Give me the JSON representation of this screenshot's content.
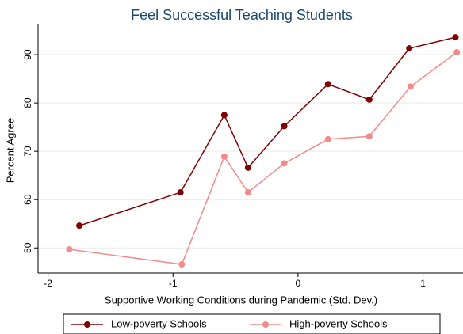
{
  "chart_data": {
    "type": "line",
    "title": "Feel Successful Teaching Students",
    "xlabel": "Supportive Working Conditions during Pandemic (Std. Dev.)",
    "ylabel": "Percent Agree",
    "xlim": [
      -2.08,
      1.32
    ],
    "xticks": [
      -2,
      -1,
      0,
      1
    ],
    "ylim": [
      44.8,
      96.4
    ],
    "yticks": [
      50,
      60,
      70,
      80,
      90
    ],
    "grid": true,
    "legend": "bottom",
    "series": [
      {
        "name": "Low-poverty Schools",
        "color": "#800000",
        "x": [
          -1.75,
          -0.94,
          -0.59,
          -0.4,
          -0.11,
          0.24,
          0.57,
          0.89,
          1.26
        ],
        "values": [
          54.6,
          61.5,
          77.5,
          66.6,
          75.2,
          83.9,
          80.7,
          91.3,
          93.6
        ]
      },
      {
        "name": "High-poverty Schools",
        "color": "#f48a8a",
        "x": [
          -1.83,
          -0.93,
          -0.59,
          -0.4,
          -0.11,
          0.24,
          0.57,
          0.9,
          1.27
        ],
        "values": [
          49.7,
          46.6,
          68.9,
          61.5,
          67.5,
          72.5,
          73.1,
          83.4,
          90.5
        ]
      }
    ]
  }
}
